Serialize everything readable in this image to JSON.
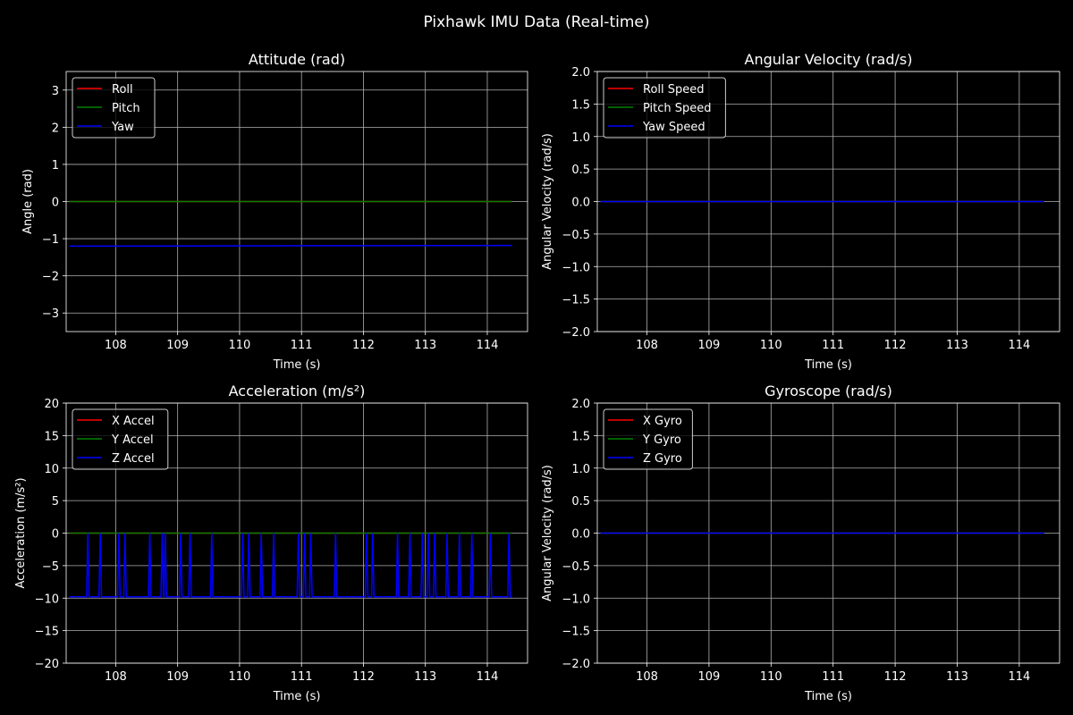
{
  "figure": {
    "title": "Pixhawk IMU Data (Real-time)"
  },
  "chart_data": [
    {
      "type": "line",
      "title": "Attitude (rad)",
      "xlabel": "Time (s)",
      "ylabel": "Angle (rad)",
      "xlim": [
        107.2,
        114.65
      ],
      "ylim": [
        -3.5,
        3.5
      ],
      "xticks": [
        108,
        109,
        110,
        111,
        112,
        113,
        114
      ],
      "yticks": [
        -3,
        -2,
        -1,
        0,
        1,
        2,
        3
      ],
      "grid": true,
      "legend": "upper-left",
      "x": [
        107.25,
        114.4
      ],
      "series": [
        {
          "name": "Roll",
          "color": "#ff0000",
          "values": [
            0.0,
            0.0
          ]
        },
        {
          "name": "Pitch",
          "color": "#008000",
          "values": [
            0.0,
            0.0
          ]
        },
        {
          "name": "Yaw",
          "color": "#0000ff",
          "values": [
            -1.2,
            -1.18
          ]
        }
      ]
    },
    {
      "type": "line",
      "title": "Angular Velocity (rad/s)",
      "xlabel": "Time (s)",
      "ylabel": "Angular Velocity (rad/s)",
      "xlim": [
        107.2,
        114.65
      ],
      "ylim": [
        -2.0,
        2.0
      ],
      "xticks": [
        108,
        109,
        110,
        111,
        112,
        113,
        114
      ],
      "yticks": [
        -2.0,
        -1.5,
        -1.0,
        -0.5,
        0.0,
        0.5,
        1.0,
        1.5,
        2.0
      ],
      "grid": true,
      "legend": "upper-left",
      "x": [
        107.25,
        114.4
      ],
      "series": [
        {
          "name": "Roll Speed",
          "color": "#ff0000",
          "values": [
            0.0,
            0.0
          ]
        },
        {
          "name": "Pitch Speed",
          "color": "#008000",
          "values": [
            0.0,
            0.0
          ]
        },
        {
          "name": "Yaw Speed",
          "color": "#0000ff",
          "values": [
            0.0,
            0.0
          ]
        }
      ]
    },
    {
      "type": "line",
      "title": "Acceleration (m/s²)",
      "xlabel": "Time (s)",
      "ylabel": "Acceleration (m/s²)",
      "xlim": [
        107.2,
        114.65
      ],
      "ylim": [
        -20,
        20
      ],
      "xticks": [
        108,
        109,
        110,
        111,
        112,
        113,
        114
      ],
      "yticks": [
        -20,
        -15,
        -10,
        -5,
        0,
        5,
        10,
        15,
        20
      ],
      "grid": true,
      "legend": "upper-left",
      "x": [
        107.25,
        114.4
      ],
      "spike_x": [
        107.55,
        107.75,
        108.05,
        108.15,
        108.55,
        108.75,
        108.8,
        109.05,
        109.2,
        109.55,
        110.05,
        110.15,
        110.35,
        110.55,
        110.95,
        111.05,
        111.15,
        111.55,
        112.05,
        112.15,
        112.55,
        112.75,
        112.95,
        113.05,
        113.15,
        113.35,
        113.55,
        113.75,
        114.05,
        114.35
      ],
      "series": [
        {
          "name": "X Accel",
          "color": "#ff0000",
          "values": [
            0.0,
            0.0
          ]
        },
        {
          "name": "Y Accel",
          "color": "#008000",
          "values": [
            0.0,
            0.0
          ]
        },
        {
          "name": "Z Accel",
          "color": "#0000ff",
          "baseline": -9.8,
          "spike_value": 0.0
        }
      ]
    },
    {
      "type": "line",
      "title": "Gyroscope (rad/s)",
      "xlabel": "Time (s)",
      "ylabel": "Angular Velocity (rad/s)",
      "xlim": [
        107.2,
        114.65
      ],
      "ylim": [
        -2.0,
        2.0
      ],
      "xticks": [
        108,
        109,
        110,
        111,
        112,
        113,
        114
      ],
      "yticks": [
        -2.0,
        -1.5,
        -1.0,
        -0.5,
        0.0,
        0.5,
        1.0,
        1.5,
        2.0
      ],
      "grid": true,
      "legend": "upper-left",
      "x": [
        107.25,
        114.4
      ],
      "series": [
        {
          "name": "X Gyro",
          "color": "#ff0000",
          "values": [
            0.0,
            0.0
          ]
        },
        {
          "name": "Y Gyro",
          "color": "#008000",
          "values": [
            0.0,
            0.0
          ]
        },
        {
          "name": "Z Gyro",
          "color": "#0000ff",
          "values": [
            0.0,
            0.0
          ]
        }
      ]
    }
  ]
}
